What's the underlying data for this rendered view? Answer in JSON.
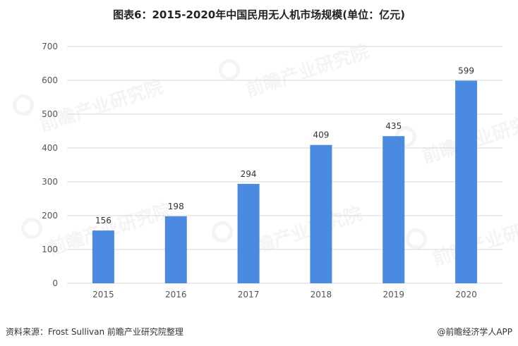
{
  "title": "图表6：2015-2020年中国民用无人机市场规模(单位：亿元)",
  "watermark": "前瞻产业研究院",
  "source": "资料来源：Frost Sullivan 前瞻产业研究院整理",
  "brand": "@前瞻经济学人APP",
  "colors": {
    "bar": "#4a8ae0",
    "grid": "#d9d9d9",
    "text": "#333333"
  },
  "chart_data": {
    "type": "bar",
    "title": "图表6：2015-2020年中国民用无人机市场规模(单位：亿元)",
    "categories": [
      "2015",
      "2016",
      "2017",
      "2018",
      "2019",
      "2020"
    ],
    "values": [
      156,
      198,
      294,
      409,
      435,
      599
    ],
    "yticks": [
      "0",
      "100",
      "200",
      "300",
      "400",
      "500",
      "600",
      "700"
    ],
    "ylim": [
      0,
      700
    ],
    "grid": true,
    "legend": "none"
  }
}
